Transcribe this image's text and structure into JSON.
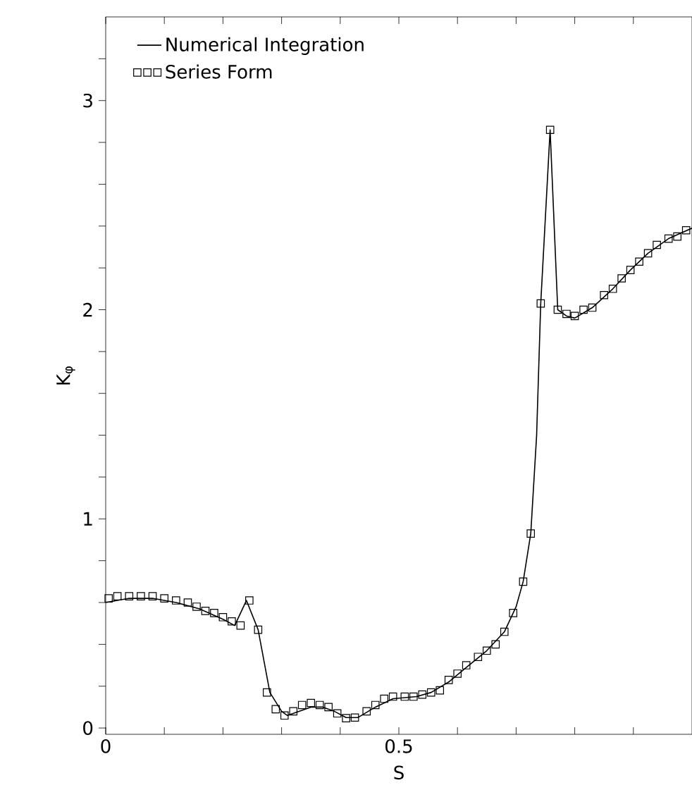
{
  "chart_data": {
    "type": "line",
    "xlabel": "S",
    "ylabel": "K$_{φ}$",
    "xlim": [
      0,
      1
    ],
    "ylim": [
      -0.03,
      3.4
    ],
    "xticks": [
      0,
      {
        "value": 0.1,
        "label": null
      },
      {
        "value": 0.2,
        "label": null
      },
      {
        "value": 0.3,
        "label": null
      },
      {
        "value": 0.4,
        "label": null
      },
      0.5,
      {
        "value": 0.6,
        "label": null
      },
      {
        "value": 0.7,
        "label": null
      },
      {
        "value": 0.8,
        "label": null
      },
      {
        "value": 0.9,
        "label": null
      }
    ],
    "yticks": [
      0,
      {
        "value": 0.2,
        "label": null
      },
      {
        "value": 0.4,
        "label": null
      },
      {
        "value": 0.6,
        "label": null
      },
      {
        "value": 0.8,
        "label": null
      },
      1,
      {
        "value": 1.2,
        "label": null
      },
      {
        "value": 1.4,
        "label": null
      },
      {
        "value": 1.6,
        "label": null
      },
      {
        "value": 1.8,
        "label": null
      },
      2,
      {
        "value": 2.2,
        "label": null
      },
      {
        "value": 2.4,
        "label": null
      },
      {
        "value": 2.6,
        "label": null
      },
      {
        "value": 2.8,
        "label": null
      },
      3,
      {
        "value": 3.2,
        "label": null
      }
    ],
    "legend": "top left",
    "grid": false,
    "series": [
      {
        "name": "Numerical Integration",
        "color": "#000000",
        "marker": "none",
        "line_style": "solid",
        "x": [
          0,
          0.04,
          0.08,
          0.12,
          0.16,
          0.2,
          0.22,
          0.24,
          0.26,
          0.28,
          0.3,
          0.31,
          0.33,
          0.35,
          0.37,
          0.39,
          0.41,
          0.43,
          0.46,
          0.49,
          0.53,
          0.555,
          0.585,
          0.615,
          0.65,
          0.68,
          0.7,
          0.712,
          0.725,
          0.735,
          0.742,
          0.758,
          0.771,
          0.786,
          0.8,
          0.83,
          0.865,
          0.895,
          0.925,
          0.96,
          1.0
        ],
        "values": [
          0.6,
          0.62,
          0.62,
          0.6,
          0.57,
          0.52,
          0.49,
          0.61,
          0.47,
          0.17,
          0.08,
          0.06,
          0.08,
          0.1,
          0.1,
          0.08,
          0.05,
          0.05,
          0.1,
          0.14,
          0.15,
          0.17,
          0.22,
          0.29,
          0.37,
          0.46,
          0.58,
          0.7,
          0.93,
          1.4,
          2.03,
          2.86,
          2.0,
          1.97,
          1.96,
          2.01,
          2.1,
          2.19,
          2.27,
          2.34,
          2.39
        ]
      },
      {
        "name": "Series Form",
        "type": "scatter",
        "color": "#000000",
        "marker": "square",
        "x": [
          0.005,
          0.02,
          0.04,
          0.06,
          0.08,
          0.1,
          0.12,
          0.14,
          0.155,
          0.17,
          0.185,
          0.2,
          0.215,
          0.23,
          0.245,
          0.26,
          0.275,
          0.29,
          0.305,
          0.32,
          0.335,
          0.35,
          0.365,
          0.38,
          0.395,
          0.41,
          0.425,
          0.445,
          0.46,
          0.475,
          0.49,
          0.51,
          0.525,
          0.54,
          0.555,
          0.57,
          0.585,
          0.6,
          0.615,
          0.635,
          0.65,
          0.665,
          0.68,
          0.695,
          0.712,
          0.725,
          0.742,
          0.758,
          0.771,
          0.786,
          0.8,
          0.815,
          0.83,
          0.85,
          0.865,
          0.88,
          0.895,
          0.91,
          0.925,
          0.94,
          0.96,
          0.975,
          0.99
        ],
        "values": [
          0.62,
          0.63,
          0.63,
          0.63,
          0.63,
          0.62,
          0.61,
          0.6,
          0.58,
          0.56,
          0.55,
          0.53,
          0.51,
          0.49,
          0.61,
          0.47,
          0.17,
          0.09,
          0.06,
          0.08,
          0.11,
          0.12,
          0.11,
          0.1,
          0.07,
          0.047,
          0.05,
          0.08,
          0.11,
          0.14,
          0.15,
          0.15,
          0.15,
          0.16,
          0.17,
          0.18,
          0.23,
          0.26,
          0.3,
          0.34,
          0.37,
          0.4,
          0.46,
          0.55,
          0.7,
          0.93,
          2.03,
          2.86,
          2.0,
          1.98,
          1.97,
          2.0,
          2.01,
          2.07,
          2.1,
          2.15,
          2.19,
          2.23,
          2.27,
          2.31,
          2.34,
          2.35,
          2.38
        ]
      }
    ]
  }
}
